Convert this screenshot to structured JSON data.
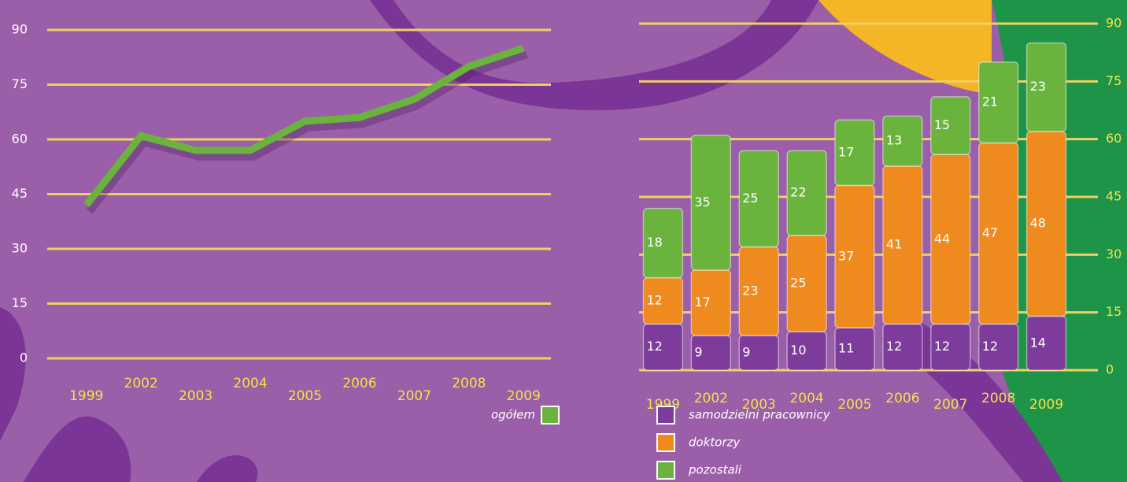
{
  "chart_data": [
    {
      "type": "line",
      "categories": [
        "1999",
        "2002",
        "2003",
        "2004",
        "2005",
        "2006",
        "2007",
        "2008",
        "2009"
      ],
      "series": [
        {
          "name": "ogółem",
          "color": "#6ab43e",
          "values": [
            42,
            61,
            57,
            57,
            65,
            66,
            71,
            80,
            85
          ]
        }
      ],
      "ylim": [
        0,
        90
      ],
      "yticks": [
        0,
        15,
        30,
        45,
        60,
        75,
        90
      ],
      "grid": true,
      "legend": "bottom"
    },
    {
      "type": "bar",
      "stacked": true,
      "categories": [
        "1999",
        "2002",
        "2003",
        "2004",
        "2005",
        "2006",
        "2007",
        "2008",
        "2009"
      ],
      "series": [
        {
          "name": "samodzielni pracownicy",
          "color": "#7d3c9c",
          "values": [
            12,
            9,
            9,
            10,
            11,
            12,
            12,
            12,
            14
          ]
        },
        {
          "name": "doktorzy",
          "color": "#ef8a1e",
          "values": [
            12,
            17,
            23,
            25,
            37,
            41,
            44,
            47,
            48
          ]
        },
        {
          "name": "pozostali",
          "color": "#6ab43e",
          "values": [
            18,
            35,
            25,
            22,
            17,
            13,
            15,
            21,
            23
          ]
        }
      ],
      "ylim": [
        0,
        90
      ],
      "yticks": [
        0,
        15,
        30,
        45,
        60,
        75,
        90
      ],
      "grid": true,
      "legend": "bottom"
    }
  ]
}
